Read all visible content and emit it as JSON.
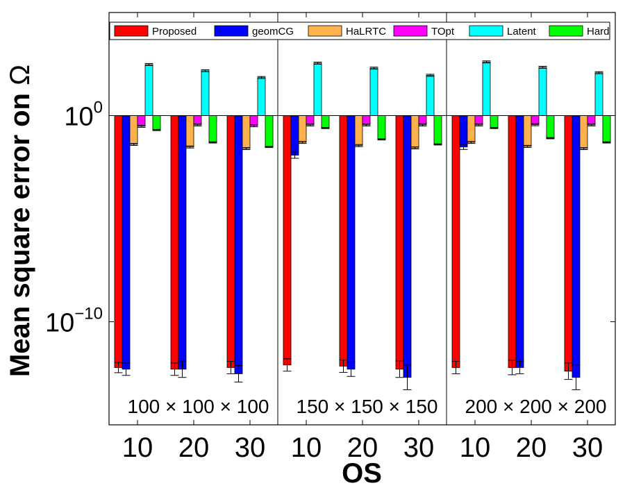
{
  "chart_data": {
    "type": "bar",
    "yscale": "log",
    "ylabel_prefix": "Mean square error on ",
    "ylabel_symbol": "Ω",
    "xlabel": "OS",
    "ylim": [
      1e-15,
      100000.0
    ],
    "y_ticks": [
      {
        "value": 1e-10,
        "base": "10",
        "exp": "−10"
      },
      {
        "value": 1,
        "base": "10",
        "exp": "0"
      }
    ],
    "panels": [
      {
        "size_label": "100 × 100 × 100",
        "os_labels": [
          "10",
          "20",
          "30"
        ]
      },
      {
        "size_label": "150 × 150 × 150",
        "os_labels": [
          "10",
          "20",
          "30"
        ]
      },
      {
        "size_label": "200 × 200 × 200",
        "os_labels": [
          "10",
          "20",
          "30"
        ]
      }
    ],
    "series": [
      {
        "name": "Proposed",
        "color": "#ff0000",
        "values": [
          [
            6e-13,
            5e-13,
            6e-13
          ],
          [
            8e-13,
            7e-13,
            5e-13
          ],
          [
            6e-13,
            6e-13,
            4e-13
          ]
        ],
        "err": [
          [
            0.25,
            0.3,
            0.3
          ],
          [
            0.3,
            0.3,
            0.4
          ],
          [
            0.3,
            0.35,
            0.4
          ]
        ]
      },
      {
        "name": "geomCG",
        "color": "#0000ff",
        "values": [
          [
            5e-13,
            5e-13,
            3e-13
          ],
          [
            0.012,
            5e-13,
            2e-13
          ],
          [
            0.03,
            6e-13,
            2e-13
          ]
        ],
        "err": [
          [
            0.3,
            0.4,
            0.4
          ],
          [
            0.15,
            0.35,
            0.6
          ],
          [
            0.12,
            0.3,
            0.6
          ]
        ]
      },
      {
        "name": "HaLRTC",
        "color": "#ffb14e",
        "values": [
          [
            0.04,
            0.03,
            0.025
          ],
          [
            0.05,
            0.035,
            0.027
          ],
          [
            0.05,
            0.032,
            0.025
          ]
        ],
        "err": [
          [
            0.05,
            0.05,
            0.05
          ],
          [
            0.05,
            0.05,
            0.05
          ],
          [
            0.05,
            0.05,
            0.05
          ]
        ]
      },
      {
        "name": "TOpt",
        "color": "#ff00ff",
        "values": [
          [
            0.3,
            0.35,
            0.32
          ],
          [
            0.35,
            0.35,
            0.35
          ],
          [
            0.35,
            0.36,
            0.35
          ]
        ],
        "err": [
          [
            0.05,
            0.05,
            0.05
          ],
          [
            0.05,
            0.05,
            0.05
          ],
          [
            0.05,
            0.05,
            0.05
          ]
        ]
      },
      {
        "name": "Latent",
        "color": "#00ffff",
        "values": [
          [
            300,
            150,
            70
          ],
          [
            350,
            200,
            90
          ],
          [
            400,
            220,
            120
          ]
        ],
        "err": [
          [
            0.05,
            0.05,
            0.05
          ],
          [
            0.05,
            0.05,
            0.05
          ],
          [
            0.05,
            0.05,
            0.05
          ]
        ]
      },
      {
        "name": "Hard",
        "color": "#00ff00",
        "values": [
          [
            0.2,
            0.05,
            0.03
          ],
          [
            0.25,
            0.07,
            0.04
          ],
          [
            0.25,
            0.08,
            0.05
          ]
        ],
        "err": [
          [
            0.03,
            0.03,
            0.03
          ],
          [
            0.03,
            0.03,
            0.03
          ],
          [
            0.03,
            0.03,
            0.03
          ]
        ]
      }
    ]
  }
}
